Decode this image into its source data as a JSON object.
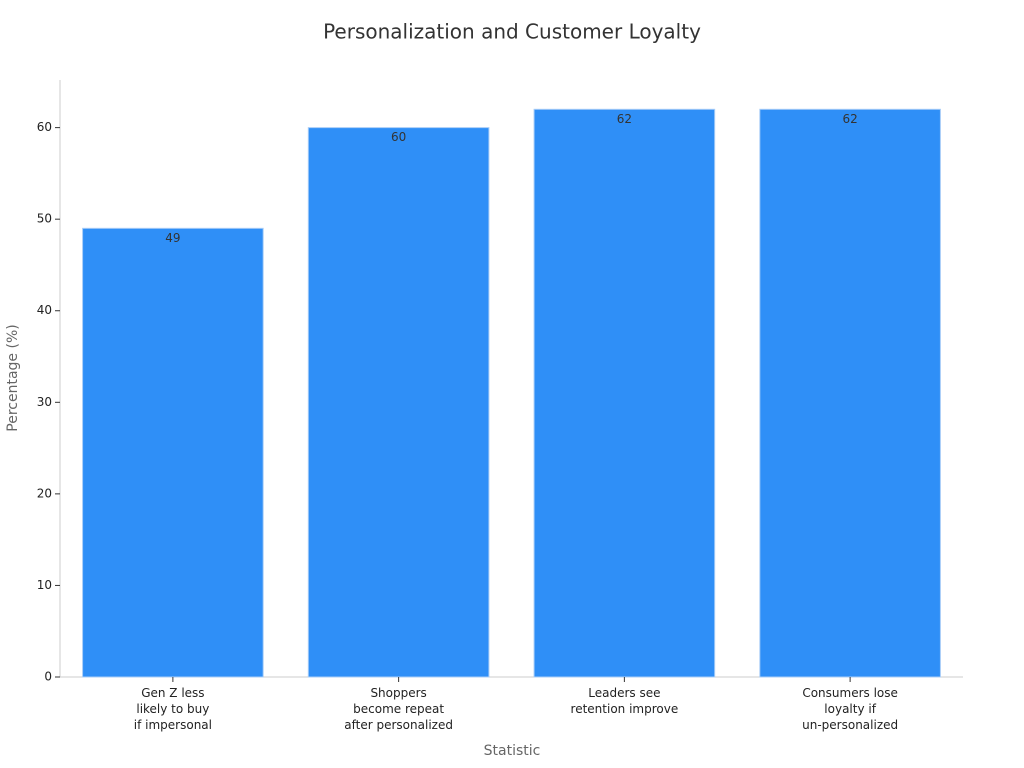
{
  "chart_data": {
    "type": "bar",
    "title": "Personalization and Customer Loyalty",
    "x_label": "Statistic",
    "y_label": "Percentage (%)",
    "categories": [
      "Gen Z less\nlikely to buy\nif impersonal",
      "Shoppers\nbecome repeat\nafter personalized",
      "Leaders see\nretention improve",
      "Consumers lose\nloyalty if\nun-personalized"
    ],
    "values": [
      49,
      60,
      62,
      62
    ],
    "color": "#2f8ff7",
    "ylim": [
      0,
      65.2
    ],
    "yticks": [
      0,
      10,
      20,
      30,
      40,
      50,
      60
    ],
    "grid": false
  }
}
